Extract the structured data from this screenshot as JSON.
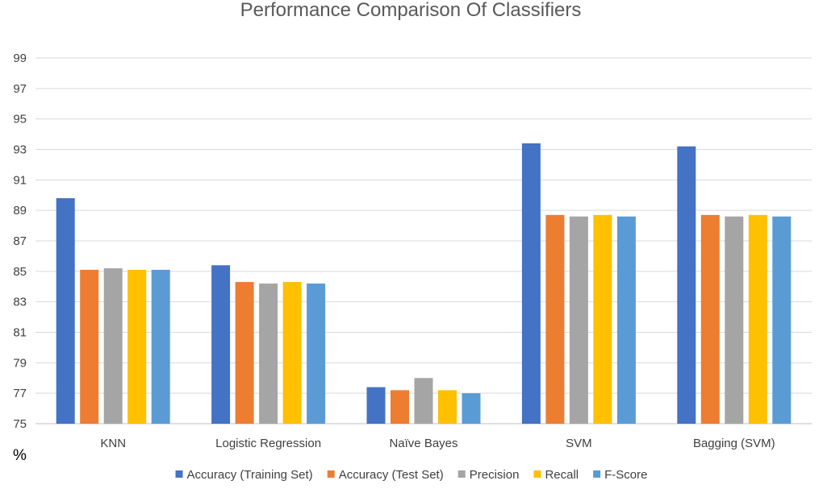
{
  "chart_data": {
    "type": "bar",
    "title": "Performance Comparison Of Classifiers",
    "ylabel": "%",
    "xlabel": "",
    "ylim": [
      75,
      99
    ],
    "yticks": [
      75,
      77,
      79,
      81,
      83,
      85,
      87,
      89,
      91,
      93,
      95,
      97,
      99
    ],
    "grid": true,
    "legend_position": "bottom",
    "categories": [
      "KNN",
      "Logistic Regression",
      "Naïve Bayes",
      "SVM",
      "Bagging (SVM)"
    ],
    "series": [
      {
        "name": "Accuracy (Training Set)",
        "color": "#4472C4",
        "values": [
          89.8,
          85.4,
          77.4,
          93.4,
          93.2
        ]
      },
      {
        "name": "Accuracy (Test Set)",
        "color": "#ED7D31",
        "values": [
          85.1,
          84.3,
          77.2,
          88.7,
          88.7
        ]
      },
      {
        "name": "Precision",
        "color": "#A5A5A5",
        "values": [
          85.2,
          84.2,
          78.0,
          88.6,
          88.6
        ]
      },
      {
        "name": "Recall",
        "color": "#FFC000",
        "values": [
          85.1,
          84.3,
          77.2,
          88.7,
          88.7
        ]
      },
      {
        "name": "F-Score",
        "color": "#5B9BD5",
        "values": [
          85.1,
          84.2,
          77.0,
          88.6,
          88.6
        ]
      }
    ]
  }
}
